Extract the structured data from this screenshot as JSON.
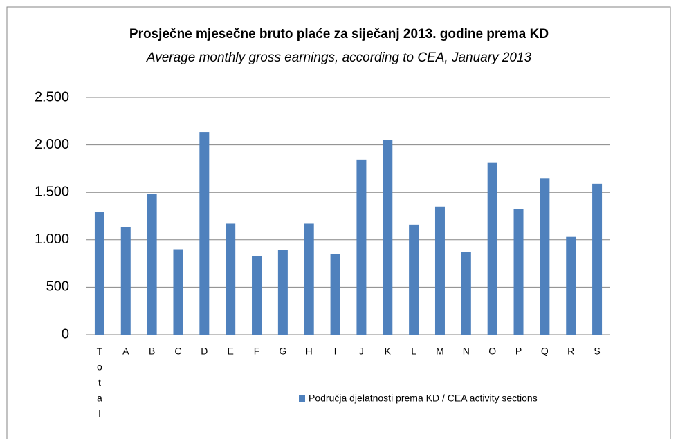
{
  "chart_data": {
    "type": "bar",
    "title": "Prosječne mjesečne bruto plaće za siječanj 2013. godine prema KD",
    "subtitle": "Average monthly gross earnings, according to CEA, January 2013",
    "categories": [
      "Total",
      "A",
      "B",
      "C",
      "D",
      "E",
      "F",
      "G",
      "H",
      "I",
      "J",
      "K",
      "L",
      "M",
      "N",
      "O",
      "P",
      "Q",
      "R",
      "S"
    ],
    "series": [
      {
        "name": "Područja djelatnosti prema KD / CEA activity sections",
        "color": "#4f81bd",
        "values": [
          1290,
          1130,
          1480,
          900,
          2135,
          1170,
          830,
          890,
          1170,
          850,
          1845,
          2055,
          1160,
          1350,
          870,
          1810,
          1320,
          1645,
          1030,
          1590
        ]
      }
    ],
    "ylim": [
      0,
      2500
    ],
    "yticks": [
      0,
      500,
      {
        "value": 1000,
        "label": "1.000"
      },
      {
        "value": 1500,
        "label": "1.500"
      },
      {
        "value": 2000,
        "label": "2.000"
      },
      {
        "value": 2500,
        "label": "2.500"
      }
    ],
    "grid": true,
    "legend": "bottom"
  }
}
